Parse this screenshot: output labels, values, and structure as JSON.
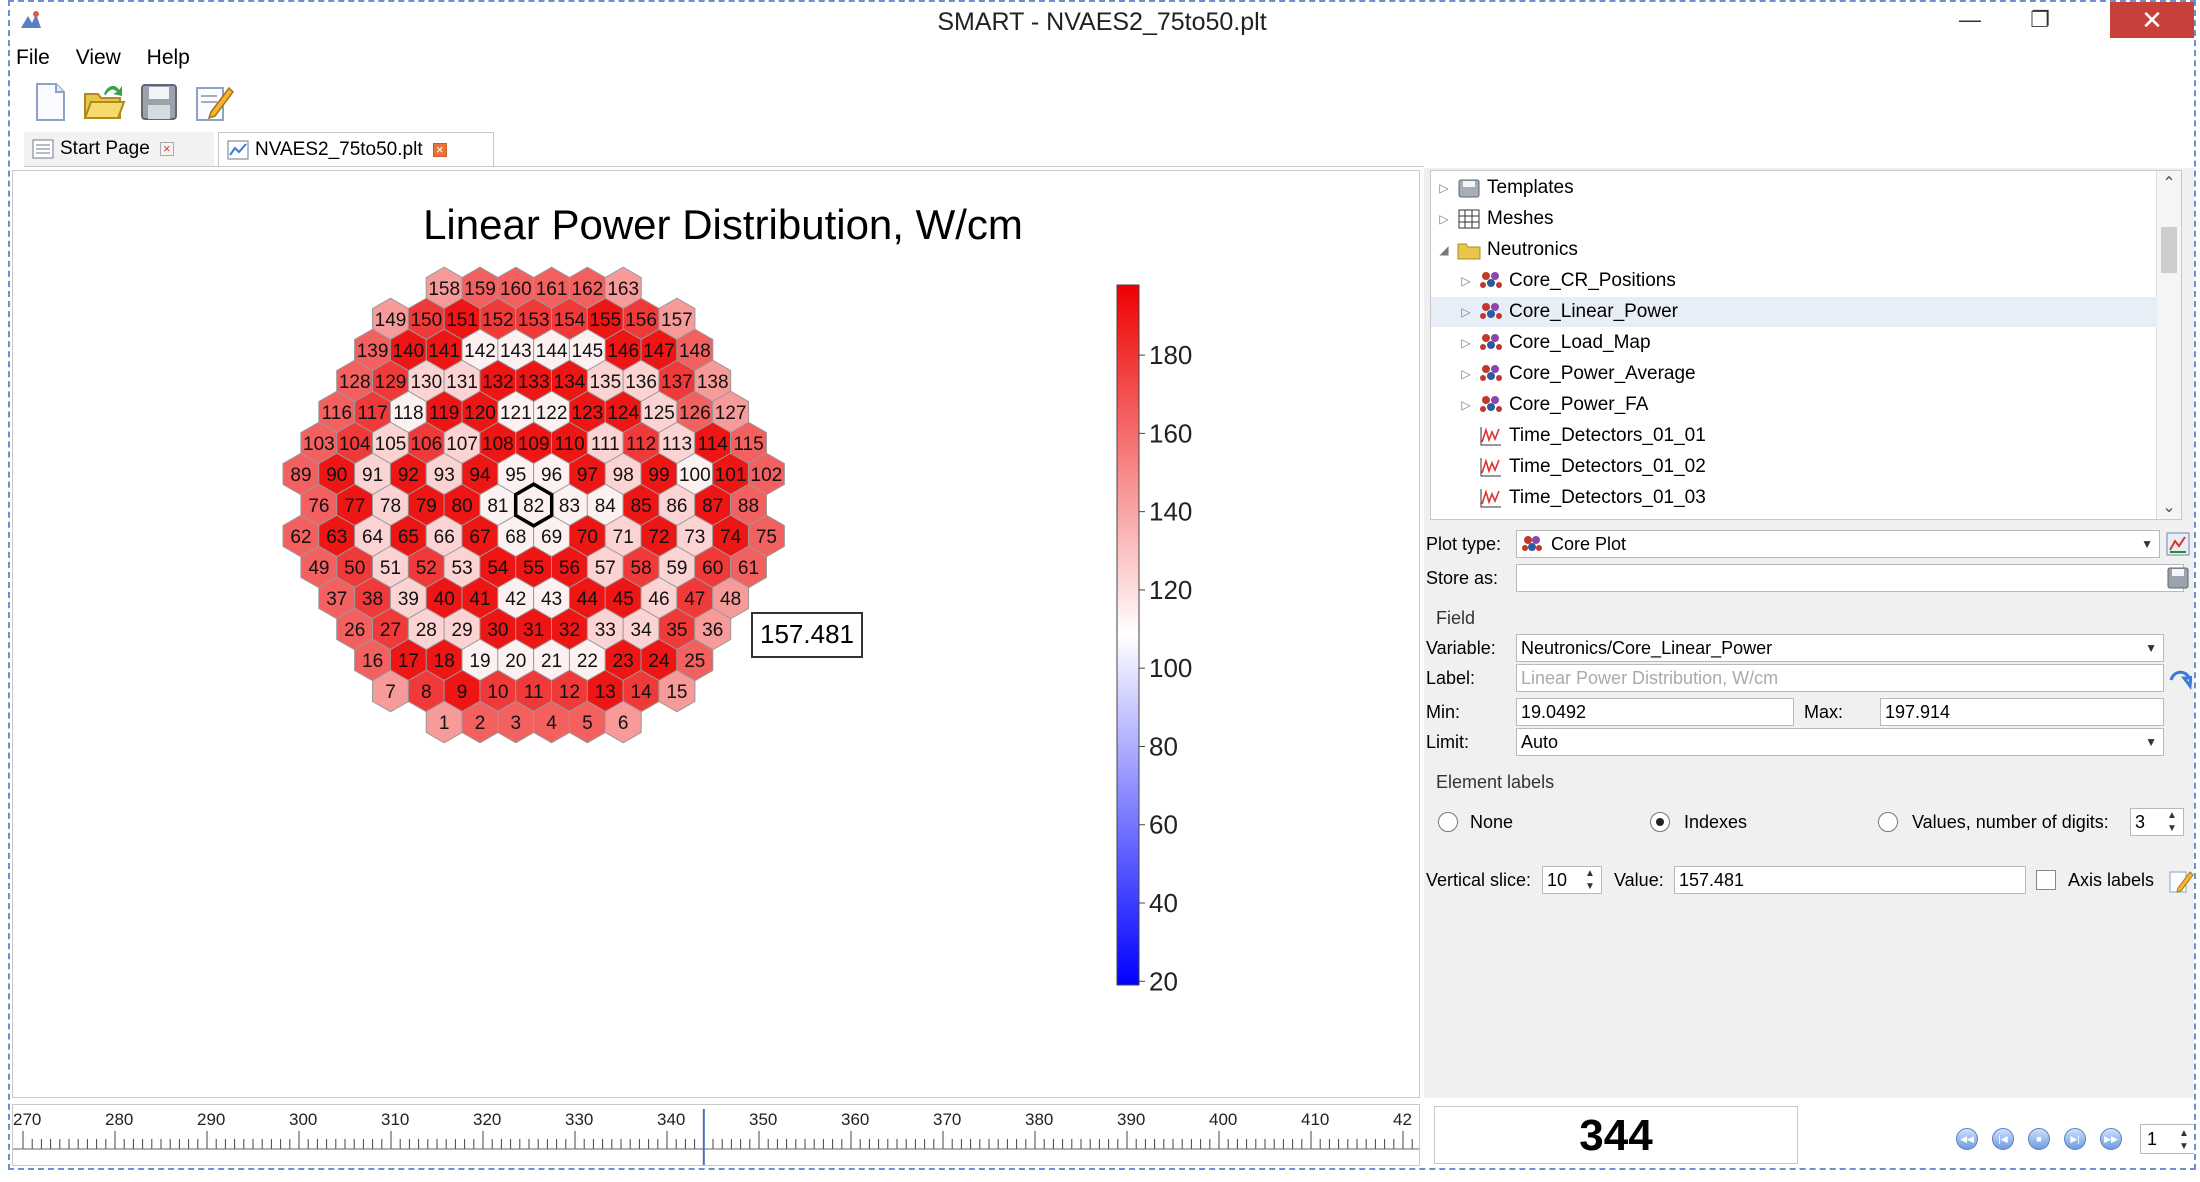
{
  "window": {
    "title": "SMART - NVAES2_75to50.plt",
    "minimize": "—",
    "restore": "❐",
    "close": "✕"
  },
  "menu": [
    "File",
    "View",
    "Help"
  ],
  "toolbar": [
    {
      "name": "new-file-icon"
    },
    {
      "name": "open-folder-icon"
    },
    {
      "name": "save-icon"
    },
    {
      "name": "edit-icon"
    }
  ],
  "tabs": [
    {
      "label": "Start Page",
      "active": false
    },
    {
      "label": "NVAES2_75to50.plt",
      "active": true
    }
  ],
  "plot": {
    "title": "Linear Power Distribution, W/cm",
    "tooltip_value": "157.481",
    "selected_index": 82,
    "colorbar": {
      "min": 19.0492,
      "max": 197.914,
      "tick_labels": [
        "180",
        "160",
        "140",
        "120",
        "100",
        "80",
        "60",
        "40",
        "20"
      ],
      "tick_values": [
        180,
        160,
        140,
        120,
        100,
        80,
        60,
        40,
        20
      ],
      "colors": {
        "low": "#0000ff",
        "mid": "#ffffff",
        "high": "#ee0000"
      }
    },
    "rows": [
      [
        158,
        159,
        160,
        161,
        162,
        163
      ],
      [
        149,
        150,
        151,
        152,
        153,
        154,
        155,
        156,
        157
      ],
      [
        139,
        140,
        141,
        142,
        143,
        144,
        145,
        146,
        147,
        148
      ],
      [
        128,
        129,
        130,
        131,
        132,
        133,
        134,
        135,
        136,
        137,
        138
      ],
      [
        116,
        117,
        118,
        119,
        120,
        121,
        122,
        123,
        124,
        125,
        126,
        127
      ],
      [
        103,
        104,
        105,
        106,
        107,
        108,
        109,
        110,
        111,
        112,
        113,
        114,
        115
      ],
      [
        89,
        90,
        91,
        92,
        93,
        94,
        95,
        96,
        97,
        98,
        99,
        100,
        101,
        102
      ],
      [
        76,
        77,
        78,
        79,
        80,
        81,
        82,
        83,
        84,
        85,
        86,
        87,
        88
      ],
      [
        62,
        63,
        64,
        65,
        66,
        67,
        68,
        69,
        70,
        71,
        72,
        73,
        74,
        75
      ],
      [
        49,
        50,
        51,
        52,
        53,
        54,
        55,
        56,
        57,
        58,
        59,
        60,
        61
      ],
      [
        37,
        38,
        39,
        40,
        41,
        42,
        43,
        44,
        45,
        46,
        47,
        48
      ],
      [
        26,
        27,
        28,
        29,
        30,
        31,
        32,
        33,
        34,
        35,
        36
      ],
      [
        16,
        17,
        18,
        19,
        20,
        21,
        22,
        23,
        24,
        25
      ],
      [
        7,
        8,
        9,
        10,
        11,
        12,
        13,
        14,
        15
      ],
      [
        1,
        2,
        3,
        4,
        5,
        6
      ]
    ],
    "row_offsets": [
      4,
      2.5,
      2,
      1.5,
      1,
      0.5,
      0,
      0.5,
      0,
      0.5,
      1,
      1.5,
      2,
      2.5,
      4
    ],
    "shades": {
      "158": "L",
      "159": "M",
      "160": "M",
      "161": "M",
      "162": "M",
      "163": "L",
      "149": "L",
      "150": "S",
      "151": "D",
      "152": "S",
      "153": "S",
      "154": "S",
      "155": "D",
      "156": "S",
      "157": "L",
      "139": "M",
      "140": "D",
      "141": "D",
      "142": "W",
      "143": "W",
      "144": "W",
      "145": "W",
      "146": "D",
      "147": "D",
      "148": "M",
      "128": "M",
      "129": "S",
      "130": "P",
      "131": "P",
      "132": "D",
      "133": "D",
      "134": "D",
      "135": "P",
      "136": "P",
      "137": "S",
      "138": "L",
      "116": "M",
      "117": "S",
      "118": "W",
      "119": "D",
      "120": "D",
      "121": "W",
      "122": "W",
      "123": "D",
      "124": "D",
      "125": "P",
      "126": "M",
      "127": "L",
      "103": "M",
      "104": "S",
      "105": "P",
      "106": "S",
      "107": "P",
      "108": "D",
      "109": "D",
      "110": "D",
      "111": "P",
      "112": "S",
      "113": "P",
      "114": "D",
      "115": "M",
      "89": "M",
      "90": "D",
      "91": "P",
      "92": "D",
      "93": "P",
      "94": "D",
      "95": "W",
      "96": "W",
      "97": "D",
      "98": "P",
      "99": "D",
      "100": "W",
      "101": "D",
      "102": "M",
      "76": "M",
      "77": "D",
      "78": "P",
      "79": "D",
      "80": "D",
      "81": "W",
      "82": "W",
      "83": "W",
      "84": "W",
      "85": "D",
      "86": "P",
      "87": "D",
      "88": "M",
      "62": "M",
      "63": "D",
      "64": "P",
      "65": "D",
      "66": "P",
      "67": "D",
      "68": "W",
      "69": "W",
      "70": "D",
      "71": "P",
      "72": "D",
      "73": "P",
      "74": "D",
      "75": "M",
      "49": "M",
      "50": "S",
      "51": "P",
      "52": "S",
      "53": "P",
      "54": "D",
      "55": "D",
      "56": "D",
      "57": "P",
      "58": "S",
      "59": "P",
      "60": "S",
      "61": "M",
      "37": "M",
      "38": "S",
      "39": "P",
      "40": "D",
      "41": "D",
      "42": "W",
      "43": "W",
      "44": "D",
      "45": "D",
      "46": "P",
      "47": "S",
      "48": "L",
      "26": "M",
      "27": "S",
      "28": "P",
      "29": "P",
      "30": "D",
      "31": "D",
      "32": "D",
      "33": "P",
      "34": "P",
      "35": "S",
      "36": "L",
      "16": "M",
      "17": "D",
      "18": "D",
      "19": "W",
      "20": "W",
      "21": "W",
      "22": "W",
      "23": "D",
      "24": "D",
      "25": "M",
      "7": "L",
      "8": "S",
      "9": "D",
      "10": "S",
      "11": "S",
      "12": "S",
      "13": "D",
      "14": "S",
      "15": "L",
      "1": "L",
      "2": "M",
      "3": "M",
      "4": "M",
      "5": "M",
      "6": "L"
    }
  },
  "tree": [
    {
      "label": "Templates",
      "level": 0,
      "expander": "▷",
      "icon": "templates-icon"
    },
    {
      "label": "Meshes",
      "level": 0,
      "expander": "▷",
      "icon": "meshes-icon"
    },
    {
      "label": "Neutronics",
      "level": 0,
      "expander": "◢",
      "icon": "folder-icon"
    },
    {
      "label": "Core_CR_Positions",
      "level": 1,
      "expander": "▷",
      "icon": "core-icon"
    },
    {
      "label": "Core_Linear_Power",
      "level": 1,
      "expander": "▷",
      "icon": "core-icon",
      "selected": true
    },
    {
      "label": "Core_Load_Map",
      "level": 1,
      "expander": "▷",
      "icon": "core-icon"
    },
    {
      "label": "Core_Power_Average",
      "level": 1,
      "expander": "▷",
      "icon": "core-icon"
    },
    {
      "label": "Core_Power_FA",
      "level": 1,
      "expander": "▷",
      "icon": "core-icon"
    },
    {
      "label": "Time_Detectors_01_01",
      "level": 1,
      "expander": "",
      "icon": "time-plot-icon"
    },
    {
      "label": "Time_Detectors_01_02",
      "level": 1,
      "expander": "",
      "icon": "time-plot-icon"
    },
    {
      "label": "Time_Detectors_01_03",
      "level": 1,
      "expander": "",
      "icon": "time-plot-icon"
    }
  ],
  "props": {
    "plot_type_label": "Plot type:",
    "plot_type_value": "Core Plot",
    "store_as_label": "Store as:",
    "store_as_value": "",
    "field_group": "Field",
    "variable_label": "Variable:",
    "variable_value": "Neutronics/Core_Linear_Power",
    "label_label": "Label:",
    "label_value": "Linear Power Distribution, W/cm",
    "min_label": "Min:",
    "min_value": "19.0492",
    "max_label": "Max:",
    "max_value": "197.914",
    "limit_label": "Limit:",
    "limit_value": "Auto",
    "element_labels_group": "Element labels",
    "radio_none": "None",
    "radio_indexes": "Indexes",
    "radio_values": "Values, number of digits:",
    "digits_value": "3",
    "selected_radio": "Indexes",
    "vertical_slice_label": "Vertical slice:",
    "vertical_slice_value": "10",
    "value_label": "Value:",
    "value_value": "157.481",
    "axis_labels": "Axis labels"
  },
  "timeline": {
    "ticks": [
      "270",
      "280",
      "290",
      "300",
      "310",
      "320",
      "330",
      "340",
      "350",
      "360",
      "370",
      "380",
      "390",
      "400",
      "410",
      "42"
    ],
    "current_frame": "344",
    "step_value": "1"
  }
}
